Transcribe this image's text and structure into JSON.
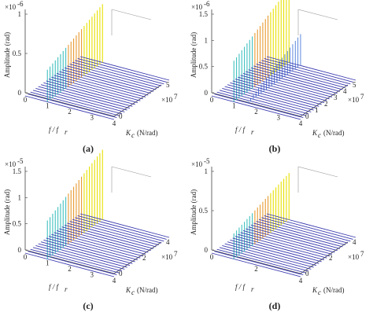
{
  "figure": {
    "panels": [
      {
        "id": "a",
        "caption": "(a)",
        "multiplier": "×10",
        "exp": "-6",
        "z_ticks": [
          "0",
          "0.5",
          "1"
        ],
        "x_ticks": [
          "0",
          "1",
          "2",
          "3",
          "4"
        ],
        "y_ticks": [
          "0",
          "5"
        ],
        "y_mult": "×10",
        "y_exp": "7"
      },
      {
        "id": "b",
        "caption": "(b)",
        "multiplier": "×10",
        "exp": "-6",
        "z_ticks": [
          "0",
          "0.5",
          "1",
          "1.5"
        ],
        "x_ticks": [
          "0",
          "1",
          "2",
          "3",
          "4"
        ],
        "y_ticks": [
          "0",
          "1",
          "2",
          "3",
          "4",
          "5"
        ],
        "y_mult": "×10",
        "y_exp": "7"
      },
      {
        "id": "c",
        "caption": "(c)",
        "multiplier": "×10",
        "exp": "-5",
        "z_ticks": [
          "0",
          "0.5",
          "1",
          "1.5"
        ],
        "x_ticks": [
          "0",
          "1",
          "2",
          "3",
          "4"
        ],
        "y_ticks": [
          "0",
          "2",
          "4"
        ],
        "y_mult": "×10",
        "y_exp": "7"
      },
      {
        "id": "d",
        "caption": "(d)",
        "multiplier": "×10",
        "exp": "-5",
        "z_ticks": [
          "0",
          "0.5",
          "1"
        ],
        "x_ticks": [
          "0",
          "2",
          "4"
        ],
        "y_ticks": [
          "0",
          "2",
          "4"
        ],
        "y_mult": "×10",
        "y_exp": "7"
      }
    ],
    "labels": {
      "zlabel": "Amplitude (rad)",
      "xlabel_main": "f / f",
      "xlabel_sub": "r",
      "ylabel_main": "K",
      "ylabel_sub": "c",
      "ylabel_unit": "(N/rad)"
    },
    "colors": {
      "peaks_high": "#e8e000",
      "peaks_mid": "#e89a30",
      "peaks_low": "#40c0c0",
      "baseline": "#3a3ab0",
      "axes": "#444444"
    }
  },
  "chart_data": [
    {
      "type": "waterfall",
      "panel": "a",
      "xlabel": "f / fr",
      "ylabel": "Kc (N/rad)",
      "zlabel": "Amplitude (rad)",
      "xlim": [
        0,
        4
      ],
      "ylim": [
        0,
        5
      ],
      "zlim": [
        0,
        1.2
      ],
      "dominant_peak": {
        "x": 1.0,
        "z": 1.25
      },
      "note_scale_z": "1e-6",
      "note_scale_y": "1e7"
    },
    {
      "type": "waterfall",
      "panel": "b",
      "xlabel": "f / fr",
      "ylabel": "Kc (N/rad)",
      "zlabel": "Amplitude (rad)",
      "xlim": [
        0,
        4
      ],
      "ylim": [
        0,
        5
      ],
      "zlim": [
        0,
        1.5
      ],
      "dominant_peak": {
        "x": 1.0,
        "z": 1.6
      },
      "secondary_peak": {
        "x": 1.5,
        "z": 0.6
      },
      "note_scale_z": "1e-6",
      "note_scale_y": "1e7"
    },
    {
      "type": "waterfall",
      "panel": "c",
      "xlabel": "f / fp",
      "ylabel": "Kc (N/rad)",
      "zlabel": "Amplitude (rad)",
      "xlim": [
        0,
        4
      ],
      "ylim": [
        0,
        5
      ],
      "zlim": [
        0,
        1.5
      ],
      "dominant_peak": {
        "x": 1.0,
        "z": 1.5
      },
      "note_scale_z": "1e-5",
      "note_scale_y": "1e7"
    },
    {
      "type": "waterfall",
      "panel": "d",
      "xlabel": "f / fp",
      "ylabel": "Kc (N/rad)",
      "zlabel": "Amplitude (rad)",
      "xlim": [
        0,
        4
      ],
      "ylim": [
        0,
        5
      ],
      "zlim": [
        0,
        1.0
      ],
      "dominant_peak": {
        "x": 1.0,
        "z": 1.0
      },
      "note_scale_z": "1e-5",
      "note_scale_y": "1e7"
    }
  ]
}
